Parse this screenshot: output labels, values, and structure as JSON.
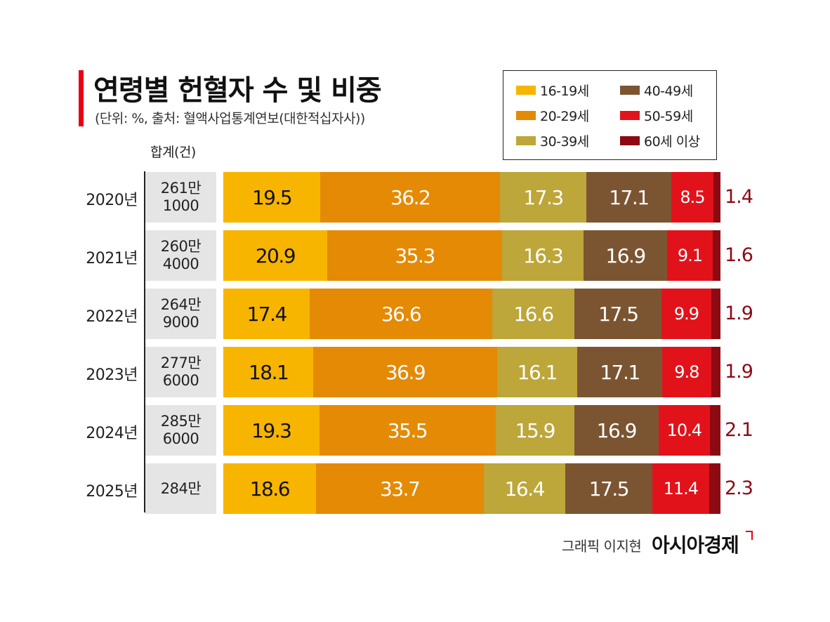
{
  "title": "연령별 헌혈자 수 및 비중",
  "subtitle": "(단위: %, 출처: 혈액사업통계연보(대한적십자사))",
  "total_header": "합계(건)",
  "credit": {
    "text": "그래픽 이지현",
    "brand": "아시아경제"
  },
  "colors": {
    "accent": "#e60012"
  },
  "chart_data": {
    "type": "bar",
    "orientation": "horizontal",
    "stacked": true,
    "percent_stacked": true,
    "title": "연령별 헌혈자 수 및 비중",
    "subtitle": "(단위: %, 출처: 혈액사업통계연보(대한적십자사))",
    "categories": [
      "2020년",
      "2021년",
      "2022년",
      "2023년",
      "2024년",
      "2025년"
    ],
    "totals": [
      [
        "261만",
        "1000"
      ],
      [
        "260만",
        "4000"
      ],
      [
        "264만",
        "9000"
      ],
      [
        "277만",
        "6000"
      ],
      [
        "285만",
        "6000"
      ],
      [
        "284만"
      ]
    ],
    "series": [
      {
        "name": "16-19세",
        "color": "#f7b500",
        "text_color": "#111111",
        "values": [
          19.5,
          20.9,
          17.4,
          18.1,
          19.3,
          18.6
        ]
      },
      {
        "name": "20-29세",
        "color": "#e48a05",
        "text_color": "#ffffff",
        "values": [
          36.2,
          35.3,
          36.6,
          36.9,
          35.5,
          33.7
        ]
      },
      {
        "name": "30-39세",
        "color": "#bda63a",
        "text_color": "#ffffff",
        "values": [
          17.3,
          16.3,
          16.6,
          16.1,
          15.9,
          16.4
        ]
      },
      {
        "name": "40-49세",
        "color": "#7b5532",
        "text_color": "#ffffff",
        "values": [
          17.1,
          16.9,
          17.5,
          17.1,
          16.9,
          17.5
        ]
      },
      {
        "name": "50-59세",
        "color": "#e2121b",
        "text_color": "#ffffff",
        "values": [
          8.5,
          9.1,
          9.9,
          9.8,
          10.4,
          11.4
        ]
      },
      {
        "name": "60세 이상",
        "color": "#8d0a12",
        "text_color": "#8b0a16",
        "values": [
          1.4,
          1.6,
          1.9,
          1.9,
          2.1,
          2.3
        ]
      }
    ],
    "legend_position": "top-right",
    "grid": false
  }
}
